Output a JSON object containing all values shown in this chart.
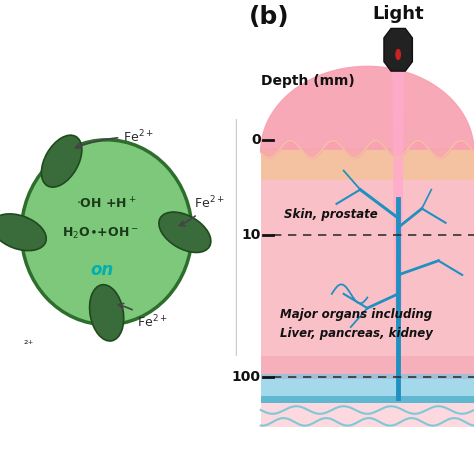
{
  "bg_color": "#ffffff",
  "panel_b_label": "(b)",
  "panel_b_label_fontsize": 18,
  "light_label": "Light",
  "light_label_fontsize": 13,
  "depth_label": "Depth (mm)",
  "depth_ticks": [
    0,
    10,
    100
  ],
  "depth_tick_fontsize": 11,
  "skin_label": "Skin, prostate",
  "organ_label1": "Major organs including",
  "organ_label2": "Liver, pancreas, kidney",
  "annotation_fontsize": 9,
  "ellipse_color": "#7dc87a",
  "ellipse_edge_color": "#2d6e2d",
  "tab_color": "#3a6b3a",
  "tab_edge_color": "#1e4a1e",
  "text_color_dark": "#1a3a1a",
  "text_cyan": "#00b0b0",
  "fe_text_color": "#2a2a2a",
  "arrow_color": "#444444",
  "light_beam_color": "#ffaacc",
  "light_beam_alpha": 0.85,
  "skin_top_color": "#f4c2a1",
  "tissue_color": "#f9c0c8",
  "tissue_deep_color": "#f5b0bc",
  "bottom_blue": "#7ec8e3",
  "bottom_strip_color": "#60b8d0",
  "vessel_color": "#2090c0",
  "pink_outer": "#f8a0b0",
  "dashed_line_color": "#333333",
  "camera_color": "#222222",
  "wave_color": "#80c8d8"
}
